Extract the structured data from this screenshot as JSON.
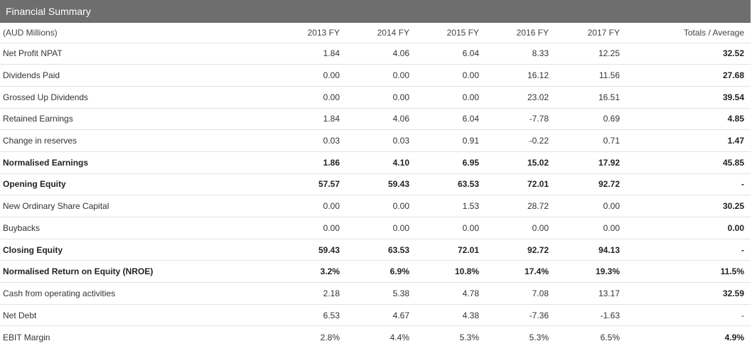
{
  "panel": {
    "title": "Financial Summary"
  },
  "table": {
    "headers": [
      "(AUD Millions)",
      "2013 FY",
      "2014 FY",
      "2015 FY",
      "2016 FY",
      "2017 FY",
      "Totals / Average"
    ],
    "rows": [
      {
        "label": "Net Profit NPAT",
        "bold": false,
        "values": [
          "1.84",
          "4.06",
          "6.04",
          "8.33",
          "12.25"
        ],
        "total": "32.52",
        "total_bold": true
      },
      {
        "label": "Dividends Paid",
        "bold": false,
        "values": [
          "0.00",
          "0.00",
          "0.00",
          "16.12",
          "11.56"
        ],
        "total": "27.68",
        "total_bold": true
      },
      {
        "label": "Grossed Up Dividends",
        "bold": false,
        "values": [
          "0.00",
          "0.00",
          "0.00",
          "23.02",
          "16.51"
        ],
        "total": "39.54",
        "total_bold": true
      },
      {
        "label": "Retained Earnings",
        "bold": false,
        "values": [
          "1.84",
          "4.06",
          "6.04",
          "-7.78",
          "0.69"
        ],
        "total": "4.85",
        "total_bold": true
      },
      {
        "label": "Change in reserves",
        "bold": false,
        "values": [
          "0.03",
          "0.03",
          "0.91",
          "-0.22",
          "0.71"
        ],
        "total": "1.47",
        "total_bold": true
      },
      {
        "label": "Normalised Earnings",
        "bold": true,
        "values": [
          "1.86",
          "4.10",
          "6.95",
          "15.02",
          "17.92"
        ],
        "total": "45.85",
        "total_bold": true
      },
      {
        "label": "Opening Equity",
        "bold": true,
        "values": [
          "57.57",
          "59.43",
          "63.53",
          "72.01",
          "92.72"
        ],
        "total": "-",
        "total_bold": false
      },
      {
        "label": "New Ordinary Share Capital",
        "bold": false,
        "values": [
          "0.00",
          "0.00",
          "1.53",
          "28.72",
          "0.00"
        ],
        "total": "30.25",
        "total_bold": true
      },
      {
        "label": "Buybacks",
        "bold": false,
        "values": [
          "0.00",
          "0.00",
          "0.00",
          "0.00",
          "0.00"
        ],
        "total": "0.00",
        "total_bold": true
      },
      {
        "label": "Closing Equity",
        "bold": true,
        "values": [
          "59.43",
          "63.53",
          "72.01",
          "92.72",
          "94.13"
        ],
        "total": "-",
        "total_bold": false
      },
      {
        "label": "Normalised Return on Equity (NROE)",
        "bold": true,
        "values": [
          "3.2%",
          "6.9%",
          "10.8%",
          "17.4%",
          "19.3%"
        ],
        "total": "11.5%",
        "total_bold": true
      },
      {
        "label": "Cash from operating activities",
        "bold": false,
        "values": [
          "2.18",
          "5.38",
          "4.78",
          "7.08",
          "13.17"
        ],
        "total": "32.59",
        "total_bold": true
      },
      {
        "label": "Net Debt",
        "bold": false,
        "values": [
          "6.53",
          "4.67",
          "4.38",
          "-7.36",
          "-1.63"
        ],
        "total": "-",
        "total_bold": false
      },
      {
        "label": "EBIT Margin",
        "bold": false,
        "values": [
          "2.8%",
          "4.4%",
          "5.3%",
          "5.3%",
          "6.5%"
        ],
        "total": "4.9%",
        "total_bold": true
      }
    ]
  }
}
